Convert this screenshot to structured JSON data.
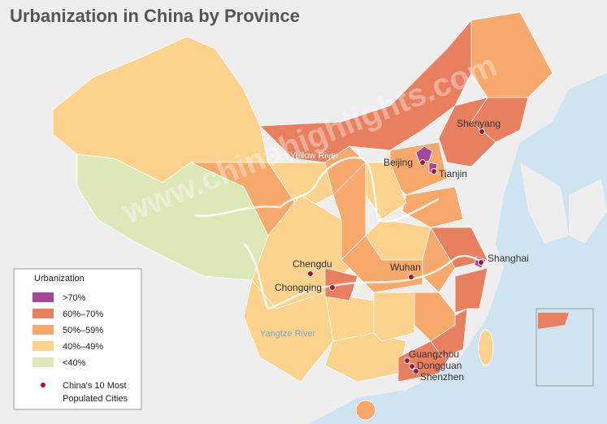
{
  "title": "Urbanization in China by Province",
  "legend": {
    "title": "Urbanization",
    "items": [
      {
        "label": ">70%",
        "color": "#a3479a"
      },
      {
        "label": "60%–70%",
        "color": "#e8805f"
      },
      {
        "label": "50%–59%",
        "color": "#f6a96a"
      },
      {
        "label": "40%–49%",
        "color": "#fcd38c"
      },
      {
        "label": "<40%",
        "color": "#dde8b9"
      }
    ],
    "cities_label": [
      "China's 10 Most",
      "Populated Cities"
    ]
  },
  "cities": [
    "Shenyang",
    "Beijing",
    "Tianjin",
    "Shanghai",
    "Chengdu",
    "Wuhan",
    "Chongqing",
    "Guangzhou",
    "Dongguan",
    "Shenzhen"
  ],
  "rivers": [
    "Yellow River",
    "Yangtze River"
  ],
  "watermark": "www.chinahighlights.com"
}
